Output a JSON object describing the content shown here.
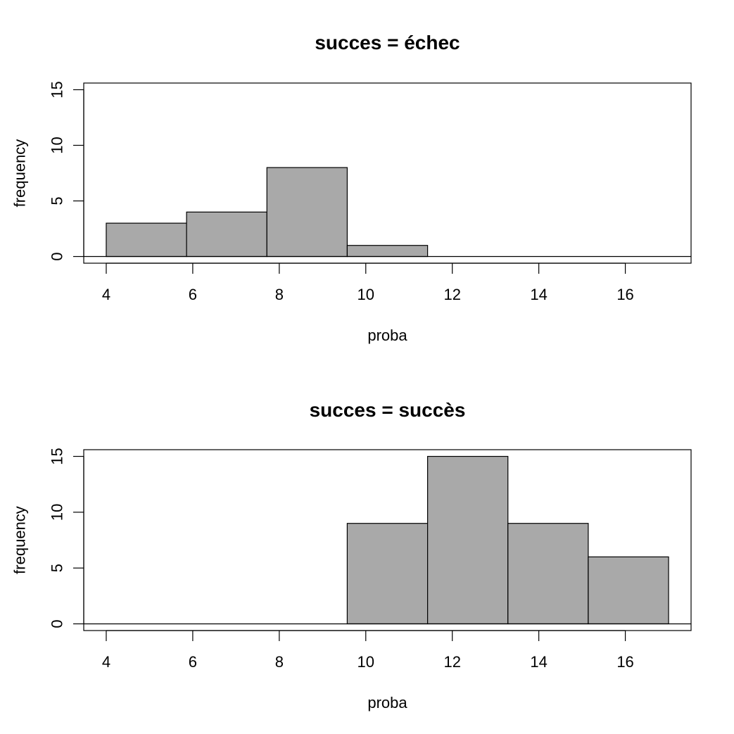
{
  "chart_data": [
    {
      "type": "bar",
      "title": "succes = échec",
      "xlabel": "proba",
      "ylabel": "frequency",
      "bin_edges": [
        4.0,
        5.857,
        7.714,
        9.571,
        11.429,
        13.286,
        15.143,
        17.0
      ],
      "values": [
        3,
        4,
        8,
        1,
        0,
        0,
        0
      ],
      "xticks": [
        4,
        6,
        8,
        10,
        12,
        14,
        16
      ],
      "yticks": [
        0,
        5,
        10,
        15
      ],
      "xlim": [
        3.48,
        17.52
      ],
      "ylim": [
        -0.6,
        15.6
      ],
      "bar_color": "#a9a9a9",
      "grid": false
    },
    {
      "type": "bar",
      "title": "succes = succès",
      "xlabel": "proba",
      "ylabel": "frequency",
      "bin_edges": [
        4.0,
        5.857,
        7.714,
        9.571,
        11.429,
        13.286,
        15.143,
        17.0
      ],
      "values": [
        0,
        0,
        0,
        9,
        15,
        9,
        6
      ],
      "xticks": [
        4,
        6,
        8,
        10,
        12,
        14,
        16
      ],
      "yticks": [
        0,
        5,
        10,
        15
      ],
      "xlim": [
        3.48,
        17.52
      ],
      "ylim": [
        -0.6,
        15.6
      ],
      "bar_color": "#a9a9a9",
      "grid": false
    }
  ]
}
